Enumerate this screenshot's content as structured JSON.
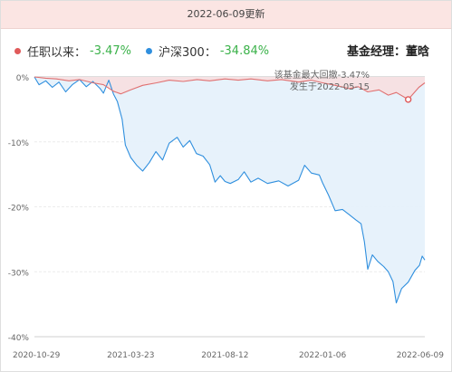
{
  "header": {
    "update_label": "2022-06-09更新"
  },
  "legend": {
    "series": [
      {
        "label": "任职以来：",
        "value": "-3.47%",
        "dot_color": "#e05a5a",
        "value_color": "#3bb24a"
      },
      {
        "label": "沪深300：",
        "value": "-34.84%",
        "dot_color": "#2f8fde",
        "value_color": "#3bb24a"
      }
    ]
  },
  "manager": {
    "label": "基金经理：",
    "name": "董晗"
  },
  "chart_data": {
    "type": "area",
    "y_unit": "%",
    "ylim": [
      -40,
      0
    ],
    "y_ticks": [
      0,
      -10,
      -20,
      -30,
      -40
    ],
    "y_tick_labels": [
      "0%",
      "-10%",
      "-20%",
      "-30%",
      "-40%"
    ],
    "x_tick_labels": [
      "2020-10-29",
      "2021-03-23",
      "2021-08-12",
      "2022-01-06",
      "2022-06-09"
    ],
    "grid": true,
    "annotation": {
      "text_line1": "该基金最大回撤-3.47%",
      "text_line2": "发生于2022-05-15",
      "date": "2022-05-15",
      "value": -3.47
    },
    "series": [
      {
        "name": "任职以来",
        "color": "#e07070",
        "fill": "#f7dfe2",
        "points": [
          [
            "2020-10-29",
            0
          ],
          [
            "2020-11-15",
            -0.2
          ],
          [
            "2020-12-01",
            -0.3
          ],
          [
            "2020-12-20",
            -0.6
          ],
          [
            "2021-01-05",
            -0.4
          ],
          [
            "2021-01-25",
            -0.9
          ],
          [
            "2021-02-10",
            -1.2
          ],
          [
            "2021-02-25",
            -2.2
          ],
          [
            "2021-03-08",
            -2.6
          ],
          [
            "2021-03-23",
            -2.0
          ],
          [
            "2021-04-10",
            -1.3
          ],
          [
            "2021-05-01",
            -0.9
          ],
          [
            "2021-05-20",
            -0.5
          ],
          [
            "2021-06-10",
            -0.7
          ],
          [
            "2021-07-01",
            -0.4
          ],
          [
            "2021-07-20",
            -0.6
          ],
          [
            "2021-08-12",
            -0.3
          ],
          [
            "2021-09-01",
            -0.5
          ],
          [
            "2021-09-20",
            -0.3
          ],
          [
            "2021-10-15",
            -0.6
          ],
          [
            "2021-11-05",
            -0.4
          ],
          [
            "2021-12-01",
            -0.8
          ],
          [
            "2021-12-20",
            -0.5
          ],
          [
            "2022-01-06",
            -0.9
          ],
          [
            "2022-01-25",
            -1.3
          ],
          [
            "2022-02-15",
            -1.8
          ],
          [
            "2022-03-01",
            -1.5
          ],
          [
            "2022-03-15",
            -2.3
          ],
          [
            "2022-04-01",
            -2.0
          ],
          [
            "2022-04-15",
            -2.8
          ],
          [
            "2022-04-27",
            -2.4
          ],
          [
            "2022-05-15",
            -3.47
          ],
          [
            "2022-05-20",
            -2.9
          ],
          [
            "2022-05-31",
            -1.6
          ],
          [
            "2022-06-09",
            -0.9
          ]
        ]
      },
      {
        "name": "沪深300",
        "color": "#2f8fde",
        "fill": "#e6f1fb",
        "points": [
          [
            "2020-10-29",
            0
          ],
          [
            "2020-11-05",
            -1.2
          ],
          [
            "2020-11-15",
            -0.6
          ],
          [
            "2020-11-25",
            -1.6
          ],
          [
            "2020-12-05",
            -0.8
          ],
          [
            "2020-12-15",
            -2.3
          ],
          [
            "2020-12-25",
            -1.2
          ],
          [
            "2021-01-05",
            -0.4
          ],
          [
            "2021-01-15",
            -1.5
          ],
          [
            "2021-01-25",
            -0.7
          ],
          [
            "2021-02-05",
            -1.8
          ],
          [
            "2021-02-10",
            -2.5
          ],
          [
            "2021-02-18",
            -0.5
          ],
          [
            "2021-02-25",
            -2.6
          ],
          [
            "2021-03-03",
            -3.8
          ],
          [
            "2021-03-10",
            -6.5
          ],
          [
            "2021-03-15",
            -10.5
          ],
          [
            "2021-03-23",
            -12.4
          ],
          [
            "2021-04-01",
            -13.6
          ],
          [
            "2021-04-10",
            -14.5
          ],
          [
            "2021-04-20",
            -13.2
          ],
          [
            "2021-04-30",
            -11.5
          ],
          [
            "2021-05-10",
            -12.8
          ],
          [
            "2021-05-20",
            -10.2
          ],
          [
            "2021-06-01",
            -9.3
          ],
          [
            "2021-06-10",
            -10.8
          ],
          [
            "2021-06-20",
            -9.8
          ],
          [
            "2021-06-30",
            -11.8
          ],
          [
            "2021-07-10",
            -12.2
          ],
          [
            "2021-07-20",
            -13.5
          ],
          [
            "2021-07-28",
            -16.2
          ],
          [
            "2021-08-05",
            -15.2
          ],
          [
            "2021-08-12",
            -16.1
          ],
          [
            "2021-08-20",
            -16.4
          ],
          [
            "2021-09-01",
            -15.8
          ],
          [
            "2021-09-10",
            -14.6
          ],
          [
            "2021-09-20",
            -16.2
          ],
          [
            "2021-10-01",
            -15.6
          ],
          [
            "2021-10-15",
            -16.4
          ],
          [
            "2021-11-01",
            -16.0
          ],
          [
            "2021-11-15",
            -16.8
          ],
          [
            "2021-12-01",
            -15.9
          ],
          [
            "2021-12-10",
            -13.6
          ],
          [
            "2021-12-20",
            -14.8
          ],
          [
            "2022-01-01",
            -15.1
          ],
          [
            "2022-01-06",
            -16.3
          ],
          [
            "2022-01-15",
            -18.2
          ],
          [
            "2022-01-25",
            -20.6
          ],
          [
            "2022-02-05",
            -20.4
          ],
          [
            "2022-02-15",
            -21.2
          ],
          [
            "2022-02-25",
            -22.0
          ],
          [
            "2022-03-05",
            -22.6
          ],
          [
            "2022-03-10",
            -25.4
          ],
          [
            "2022-03-15",
            -29.6
          ],
          [
            "2022-03-22",
            -27.4
          ],
          [
            "2022-03-30",
            -28.4
          ],
          [
            "2022-04-08",
            -29.2
          ],
          [
            "2022-04-15",
            -30.0
          ],
          [
            "2022-04-22",
            -31.5
          ],
          [
            "2022-04-27",
            -34.8
          ],
          [
            "2022-05-05",
            -32.6
          ],
          [
            "2022-05-15",
            -31.6
          ],
          [
            "2022-05-25",
            -29.8
          ],
          [
            "2022-06-01",
            -29.0
          ],
          [
            "2022-06-05",
            -27.6
          ],
          [
            "2022-06-09",
            -28.2
          ]
        ]
      }
    ]
  }
}
